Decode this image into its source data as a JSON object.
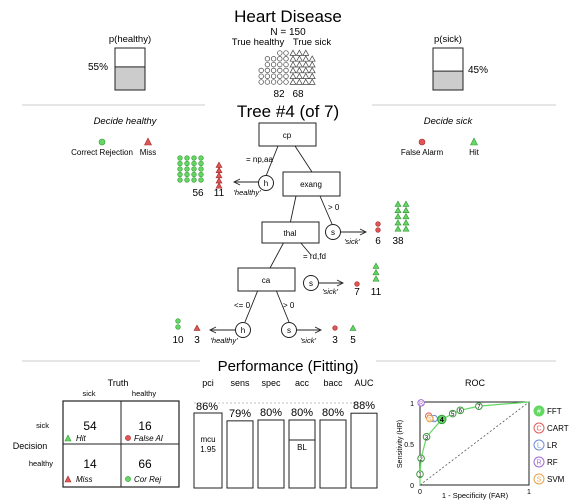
{
  "header": {
    "title": "Heart Disease",
    "n_label": "N = 150",
    "col_healthy": "True healthy",
    "col_sick": "True sick",
    "count_healthy": "82",
    "count_sick": "68",
    "p_healthy": {
      "label": "p(healthy)",
      "value_text": "55%",
      "fraction": 0.55
    },
    "p_sick": {
      "label": "p(sick)",
      "value_text": "45%",
      "fraction": 0.45
    }
  },
  "tree": {
    "title": "Tree #4 (of 7)",
    "legend_left": {
      "title": "Decide healthy",
      "items": [
        "Correct Rejection",
        "Miss"
      ]
    },
    "legend_right": {
      "title": "Decide sick",
      "items": [
        "False Alarm",
        "Hit"
      ]
    },
    "nodes": [
      "cp",
      "exang",
      "thal",
      "ca"
    ],
    "edge_labels": [
      "= np,aa",
      "> 0",
      "= rd,fd",
      "<= 0",
      "> 0"
    ],
    "leaf_letter_h": "h",
    "leaf_letter_s": "s",
    "leaf_label_healthy": "'healthy'",
    "leaf_label_sick": "'sick'",
    "leaf_counts": [
      {
        "left": "56",
        "right": "11",
        "left_n": 56,
        "right_n": 11
      },
      {
        "left": "6",
        "right": "38",
        "left_n": 6,
        "right_n": 38
      },
      {
        "left": "7",
        "right": "11",
        "left_n": 7,
        "right_n": 11
      },
      {
        "left": "10",
        "right": "3",
        "left_n": 10,
        "right_n": 3
      },
      {
        "left": "3",
        "right": "5",
        "left_n": 3,
        "right_n": 5
      }
    ]
  },
  "performance": {
    "title": "Performance (Fitting)",
    "confusion": {
      "truth_label": "Truth",
      "truth_sick": "sick",
      "truth_healthy": "healthy",
      "decision_label": "Decision",
      "row_sick": "sick",
      "row_healthy": "healthy",
      "cells": [
        {
          "n": "54",
          "label": "Hit"
        },
        {
          "n": "16",
          "label": "False Al"
        },
        {
          "n": "14",
          "label": "Miss"
        },
        {
          "n": "66",
          "label": "Cor Rej"
        }
      ]
    },
    "metrics": {
      "pci_label": "pci",
      "pci_value": "86%",
      "pci_fraction": 0.86,
      "mcu_label": "mcu",
      "mcu_value": "1.95",
      "bl_label": "BL",
      "bars": [
        {
          "name": "sens",
          "value": "79%",
          "fraction": 0.79
        },
        {
          "name": "spec",
          "value": "80%",
          "fraction": 0.8
        },
        {
          "name": "acc",
          "value": "80%",
          "fraction": 0.8
        },
        {
          "name": "bacc",
          "value": "80%",
          "fraction": 0.8
        },
        {
          "name": "AUC",
          "value": "88%",
          "fraction": 0.88
        }
      ]
    },
    "roc": {
      "title": "ROC",
      "ylabel": "Sensitivity (HR)",
      "xlabel": "1 - Specificity (FAR)",
      "tick_0": "0",
      "tick_1": "1",
      "tick_mid": "0.5",
      "fft_points": [
        {
          "label": "1",
          "far": 0.0,
          "hr": 0.13
        },
        {
          "label": "2",
          "far": 0.01,
          "hr": 0.32
        },
        {
          "label": "3",
          "far": 0.06,
          "hr": 0.58
        },
        {
          "label": "4",
          "far": 0.2,
          "hr": 0.79
        },
        {
          "label": "5",
          "far": 0.3,
          "hr": 0.86
        },
        {
          "label": "6",
          "far": 0.37,
          "hr": 0.9
        },
        {
          "label": "7",
          "far": 0.54,
          "hr": 0.95
        }
      ],
      "other_points": [
        {
          "label": "C",
          "far": 0.08,
          "hr": 0.83,
          "color": "#e35b5b"
        },
        {
          "label": "L",
          "far": 0.13,
          "hr": 0.8,
          "color": "#6f8fd6"
        },
        {
          "label": "R",
          "far": 0.01,
          "hr": 0.99,
          "color": "#a26bd0"
        },
        {
          "label": "S",
          "far": 0.09,
          "hr": 0.8,
          "color": "#e8a14b"
        }
      ],
      "legend": [
        "FFT",
        "CART",
        "LR",
        "RF",
        "SVM"
      ],
      "legend_letters": [
        "#",
        "C",
        "L",
        "R",
        "S"
      ]
    }
  },
  "colors": {
    "green": "#63d863",
    "red": "#e25555",
    "gray_fill": "#cccccc",
    "text": "#222222"
  }
}
